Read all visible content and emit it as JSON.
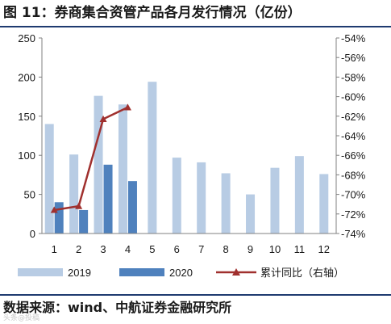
{
  "title": "图 11：券商集合资管产品各月发行情况（亿份）",
  "source": "数据来源：wind、中航证券金融研究所",
  "watermark": "头条@投稿",
  "colors": {
    "series_2019": "#b8cce4",
    "series_2020": "#4f81bd",
    "line": "#a0302e",
    "rule": "#1f3b70"
  },
  "chart_data": {
    "type": "bar",
    "categories": [
      "1",
      "2",
      "3",
      "4",
      "5",
      "6",
      "7",
      "8",
      "9",
      "10",
      "11",
      "12"
    ],
    "series": [
      {
        "name": "2019",
        "type": "bar",
        "axis": "left",
        "values": [
          140,
          101,
          176,
          165,
          194,
          97,
          91,
          77,
          50,
          84,
          99,
          76
        ]
      },
      {
        "name": "2020",
        "type": "bar",
        "axis": "left",
        "values": [
          40,
          30,
          88,
          67,
          null,
          null,
          null,
          null,
          null,
          null,
          null,
          null
        ]
      },
      {
        "name": "累计同比（右轴）",
        "type": "line",
        "axis": "right",
        "marker": "triangle",
        "values": [
          -71.6,
          -71.2,
          -62.3,
          -61.1,
          null,
          null,
          null,
          null,
          null,
          null,
          null,
          null
        ]
      }
    ],
    "y_left": {
      "ylim": [
        0,
        250
      ],
      "ticks": [
        0,
        50,
        100,
        150,
        200,
        250
      ],
      "tick_labels": [
        "0",
        "50",
        "100",
        "150",
        "200",
        "250"
      ]
    },
    "y_right": {
      "ylim": [
        -74,
        -54
      ],
      "ticks": [
        -54,
        -56,
        -58,
        -60,
        -62,
        -64,
        -66,
        -68,
        -70,
        -72,
        -74
      ],
      "tick_labels": [
        "-54%",
        "-56%",
        "-58%",
        "-60%",
        "-62%",
        "-64%",
        "-66%",
        "-68%",
        "-70%",
        "-72%",
        "-74%"
      ]
    },
    "grid": false,
    "legend_position": "bottom"
  }
}
